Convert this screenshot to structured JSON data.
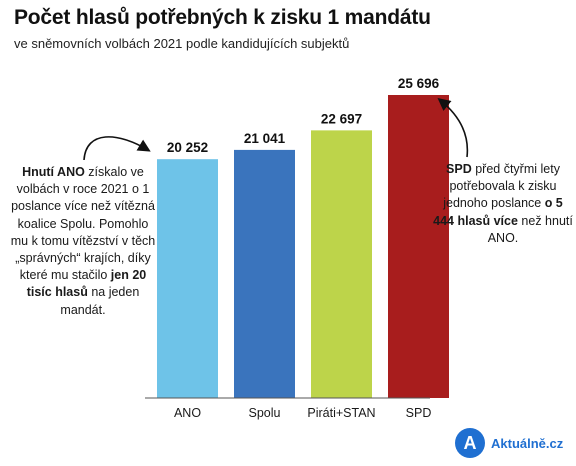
{
  "title": "Počet hlasů potřebných k zisku 1 mandátu",
  "subtitle": "ve sněmovních volbách 2021 podle kandidujících subjektů",
  "chart_data": {
    "type": "bar",
    "categories": [
      "ANO",
      "Spolu",
      "Piráti+STAN",
      "SPD"
    ],
    "values": [
      20252,
      21041,
      22697,
      25696
    ],
    "value_labels": [
      "20 252",
      "21 041",
      "22 697",
      "25 696"
    ],
    "colors": [
      "#6ec3e8",
      "#3a74bd",
      "#bdd44a",
      "#a81d1d"
    ],
    "ylim": [
      0,
      25696
    ],
    "grid": false,
    "legend": "none"
  },
  "notes": {
    "left": {
      "p1_bold": "Hnutí ANO",
      "p1": " získalo ve volbách v roce 2021 o 1 poslance více než vítězná koalice Spolu. Pomohlo mu k tomu vítězství v těch „správných“ krajích, díky které mu stačilo ",
      "p2_bold": "jen 20 tisíc hlasů",
      "p2": " na jeden mandát."
    },
    "right": {
      "p1_bold": "SPD",
      "p1": " před čtyřmi lety potřebovala k zisku jednoho poslance ",
      "p2_bold": "o 5 444 hlasů více",
      "p2": " než hnutí ANO."
    }
  },
  "brand": {
    "logo_letter": "A",
    "name": "Aktuálně.cz",
    "color": "#1f6fd1"
  }
}
